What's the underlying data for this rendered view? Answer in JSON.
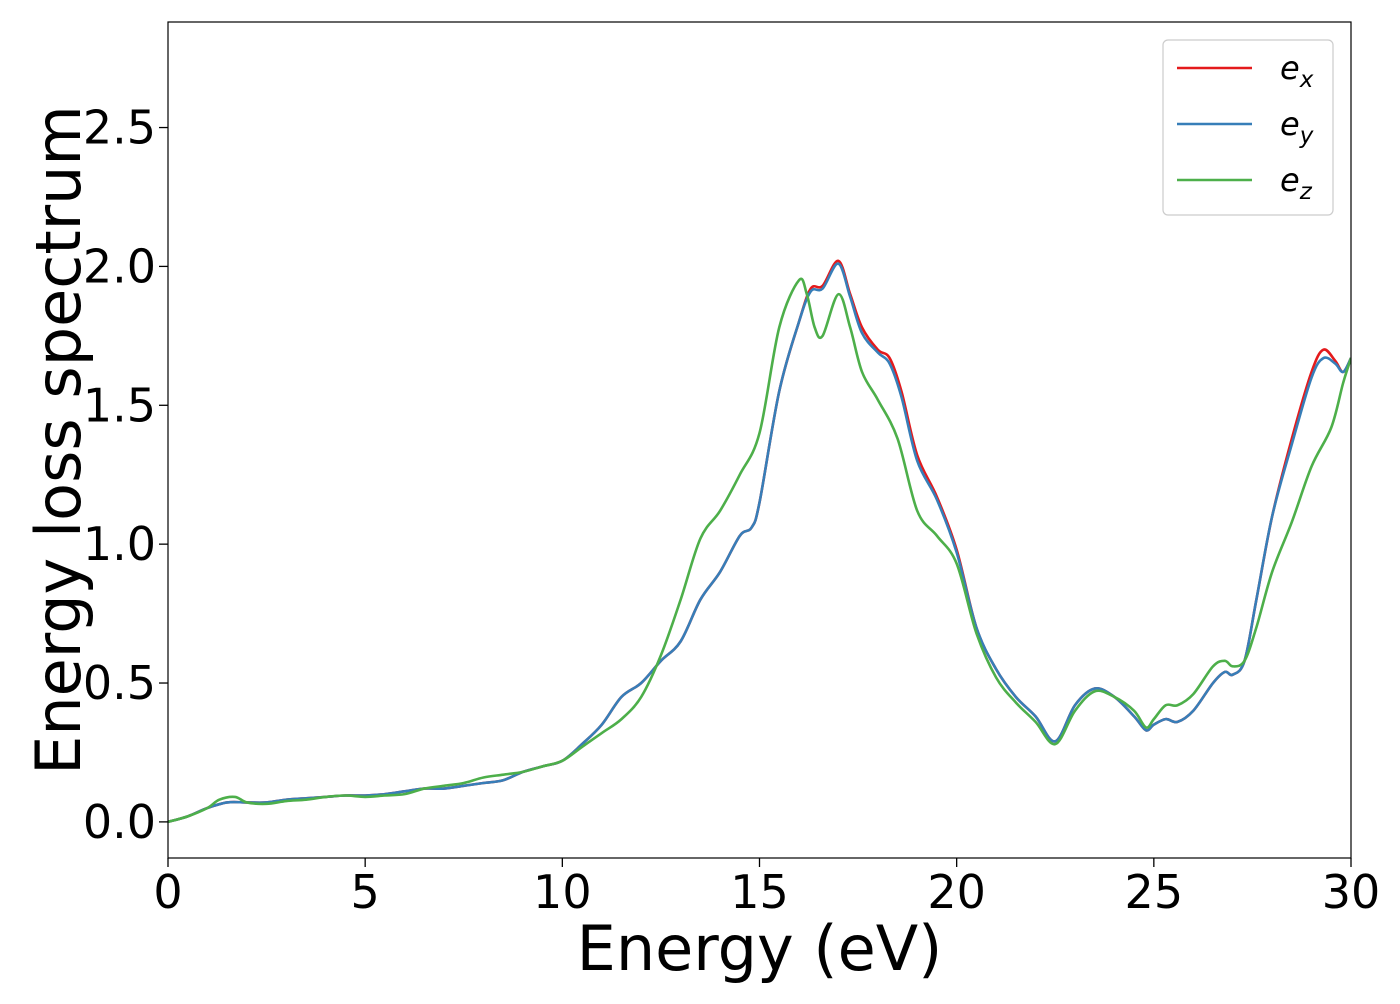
{
  "chart_data": {
    "type": "line",
    "title": "",
    "xlabel": "Energy (eV)",
    "ylabel": "Energy loss spectrum",
    "xlim": [
      0,
      30
    ],
    "ylim": [
      -0.13,
      2.88
    ],
    "xticks": [
      0,
      5,
      10,
      15,
      20,
      25,
      30
    ],
    "xtick_labels": [
      "0",
      "5",
      "10",
      "15",
      "20",
      "25",
      "30"
    ],
    "yticks": [
      0.0,
      0.5,
      1.0,
      1.5,
      2.0,
      2.5
    ],
    "ytick_labels": [
      "0.0",
      "0.5",
      "1.0",
      "1.5",
      "2.0",
      "2.5"
    ],
    "grid": false,
    "legend": {
      "position": "upper-right",
      "entries": [
        {
          "base": "e",
          "sub": "x",
          "color": "#e41a1c"
        },
        {
          "base": "e",
          "sub": "y",
          "color": "#377eb8"
        },
        {
          "base": "e",
          "sub": "z",
          "color": "#4daf4a"
        }
      ]
    },
    "series": [
      {
        "name": "e_x",
        "color": "#e41a1c",
        "x": [
          0,
          0.5,
          1.0,
          1.5,
          2.0,
          2.5,
          3.0,
          3.5,
          4.0,
          4.5,
          5.0,
          5.5,
          6.0,
          6.5,
          7.0,
          7.5,
          8.0,
          8.5,
          9.0,
          9.5,
          10.0,
          10.5,
          11.0,
          11.5,
          12.0,
          12.5,
          13.0,
          13.5,
          14.0,
          14.5,
          14.8,
          15.0,
          15.5,
          16.0,
          16.3,
          16.6,
          17.0,
          17.3,
          17.6,
          18.0,
          18.3,
          18.6,
          19.0,
          19.5,
          20.0,
          20.5,
          21.0,
          21.5,
          22.0,
          22.5,
          23.0,
          23.5,
          24.0,
          24.5,
          24.8,
          25.0,
          25.3,
          25.6,
          26.0,
          26.5,
          26.8,
          27.0,
          27.3,
          27.6,
          28.0,
          28.5,
          29.0,
          29.3,
          29.6,
          29.8,
          30.0
        ],
        "y": [
          0.0,
          0.02,
          0.05,
          0.07,
          0.07,
          0.07,
          0.08,
          0.085,
          0.09,
          0.095,
          0.095,
          0.1,
          0.11,
          0.12,
          0.12,
          0.13,
          0.14,
          0.15,
          0.18,
          0.2,
          0.22,
          0.28,
          0.35,
          0.45,
          0.5,
          0.58,
          0.65,
          0.8,
          0.9,
          1.03,
          1.06,
          1.15,
          1.55,
          1.8,
          1.92,
          1.93,
          2.02,
          1.9,
          1.78,
          1.7,
          1.67,
          1.55,
          1.32,
          1.17,
          0.98,
          0.7,
          0.55,
          0.45,
          0.38,
          0.29,
          0.42,
          0.48,
          0.45,
          0.38,
          0.33,
          0.35,
          0.37,
          0.36,
          0.4,
          0.5,
          0.54,
          0.53,
          0.58,
          0.8,
          1.1,
          1.38,
          1.62,
          1.7,
          1.66,
          1.62,
          1.67
        ]
      },
      {
        "name": "e_y",
        "color": "#377eb8",
        "x": [
          0,
          0.5,
          1.0,
          1.5,
          2.0,
          2.5,
          3.0,
          3.5,
          4.0,
          4.5,
          5.0,
          5.5,
          6.0,
          6.5,
          7.0,
          7.5,
          8.0,
          8.5,
          9.0,
          9.5,
          10.0,
          10.5,
          11.0,
          11.5,
          12.0,
          12.5,
          13.0,
          13.5,
          14.0,
          14.5,
          14.8,
          15.0,
          15.5,
          16.0,
          16.3,
          16.6,
          17.0,
          17.3,
          17.6,
          18.0,
          18.3,
          18.6,
          19.0,
          19.5,
          20.0,
          20.5,
          21.0,
          21.5,
          22.0,
          22.5,
          23.0,
          23.5,
          24.0,
          24.5,
          24.8,
          25.0,
          25.3,
          25.6,
          26.0,
          26.5,
          26.8,
          27.0,
          27.3,
          27.6,
          28.0,
          28.5,
          29.0,
          29.3,
          29.6,
          29.8,
          30.0
        ],
        "y": [
          0.0,
          0.02,
          0.05,
          0.07,
          0.07,
          0.07,
          0.08,
          0.085,
          0.09,
          0.095,
          0.095,
          0.1,
          0.11,
          0.12,
          0.12,
          0.13,
          0.14,
          0.15,
          0.18,
          0.2,
          0.22,
          0.28,
          0.35,
          0.45,
          0.5,
          0.58,
          0.65,
          0.8,
          0.9,
          1.03,
          1.06,
          1.15,
          1.55,
          1.8,
          1.91,
          1.92,
          2.01,
          1.89,
          1.76,
          1.69,
          1.65,
          1.53,
          1.3,
          1.16,
          0.97,
          0.7,
          0.55,
          0.45,
          0.38,
          0.29,
          0.42,
          0.48,
          0.45,
          0.38,
          0.33,
          0.35,
          0.37,
          0.36,
          0.4,
          0.5,
          0.54,
          0.53,
          0.58,
          0.8,
          1.1,
          1.36,
          1.6,
          1.67,
          1.65,
          1.62,
          1.67
        ]
      },
      {
        "name": "e_z",
        "color": "#4daf4a",
        "x": [
          0,
          0.5,
          1.0,
          1.3,
          1.7,
          2.0,
          2.5,
          3.0,
          3.5,
          4.0,
          4.5,
          5.0,
          5.5,
          6.0,
          6.5,
          7.0,
          7.5,
          8.0,
          8.5,
          9.0,
          9.5,
          10.0,
          10.5,
          11.0,
          11.5,
          12.0,
          12.5,
          13.0,
          13.5,
          14.0,
          14.5,
          15.0,
          15.5,
          16.0,
          16.2,
          16.4,
          16.6,
          17.0,
          17.3,
          17.6,
          18.0,
          18.5,
          19.0,
          19.5,
          20.0,
          20.5,
          21.0,
          21.5,
          22.0,
          22.5,
          23.0,
          23.5,
          24.0,
          24.5,
          24.8,
          25.0,
          25.3,
          25.6,
          26.0,
          26.5,
          26.8,
          27.0,
          27.3,
          27.6,
          28.0,
          28.5,
          29.0,
          29.5,
          29.8,
          30.0
        ],
        "y": [
          0.0,
          0.02,
          0.05,
          0.08,
          0.09,
          0.07,
          0.065,
          0.075,
          0.08,
          0.09,
          0.095,
          0.09,
          0.095,
          0.1,
          0.12,
          0.13,
          0.14,
          0.16,
          0.17,
          0.18,
          0.2,
          0.22,
          0.27,
          0.32,
          0.37,
          0.45,
          0.6,
          0.8,
          1.02,
          1.12,
          1.25,
          1.4,
          1.78,
          1.95,
          1.9,
          1.78,
          1.75,
          1.9,
          1.78,
          1.62,
          1.52,
          1.38,
          1.12,
          1.03,
          0.93,
          0.68,
          0.52,
          0.43,
          0.36,
          0.28,
          0.4,
          0.47,
          0.45,
          0.4,
          0.34,
          0.37,
          0.42,
          0.42,
          0.46,
          0.56,
          0.58,
          0.56,
          0.58,
          0.7,
          0.9,
          1.08,
          1.28,
          1.42,
          1.58,
          1.67
        ]
      }
    ]
  }
}
